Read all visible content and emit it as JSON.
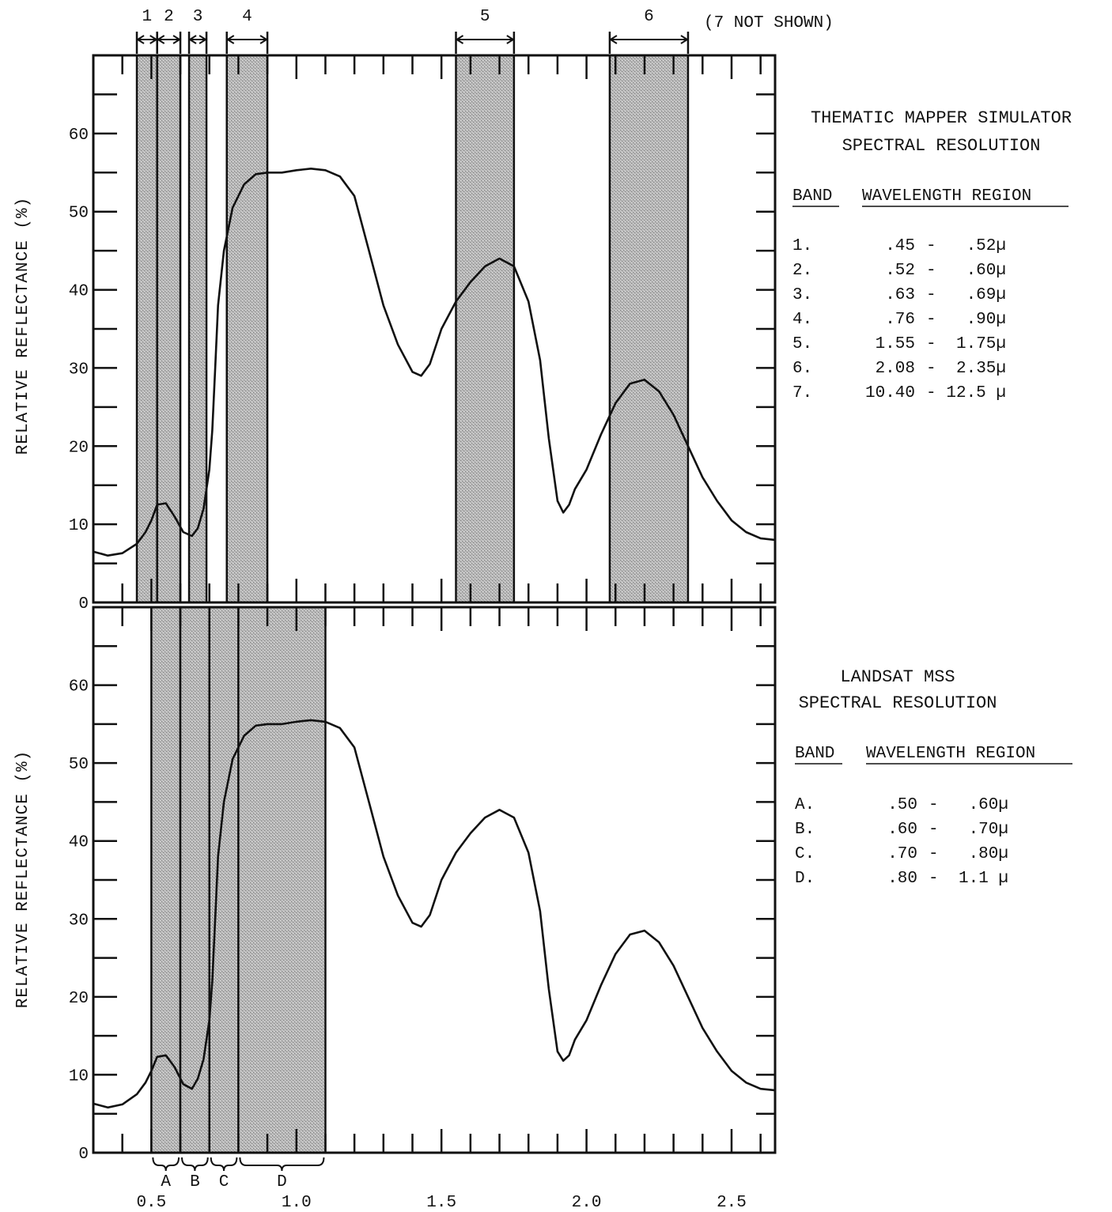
{
  "chart_data": [
    {
      "type": "line",
      "title_lines": [
        "THEMATIC MAPPER SIMULATOR",
        "SPECTRAL RESOLUTION"
      ],
      "ylabel": "RELATIVE REFLECTANCE (%)",
      "xlabel": "",
      "xlim": [
        0.3,
        2.65
      ],
      "ylim": [
        0,
        70
      ],
      "yticks": [
        {
          "value": 0,
          "label": "0"
        },
        {
          "value": 10,
          "label": "10"
        },
        {
          "value": 20,
          "label": "20"
        },
        {
          "value": 30,
          "label": "30"
        },
        {
          "value": 40,
          "label": "40"
        },
        {
          "value": 50,
          "label": "50"
        },
        {
          "value": 60,
          "label": "60"
        }
      ],
      "top_note": "(7 NOT SHOWN)",
      "bands": [
        {
          "label": "1",
          "from": 0.45,
          "to": 0.52
        },
        {
          "label": "2",
          "from": 0.52,
          "to": 0.6
        },
        {
          "label": "3",
          "from": 0.63,
          "to": 0.69
        },
        {
          "label": "4",
          "from": 0.76,
          "to": 0.9
        },
        {
          "label": "5",
          "from": 1.55,
          "to": 1.75
        },
        {
          "label": "6",
          "from": 2.08,
          "to": 2.35
        }
      ],
      "legend": {
        "headers": [
          "BAND",
          "WAVELENGTH REGION"
        ],
        "rows": [
          {
            "band": "1.",
            "from": ".45",
            "to": ".52µ"
          },
          {
            "band": "2.",
            "from": ".52",
            "to": ".60µ"
          },
          {
            "band": "3.",
            "from": ".63",
            "to": ".69µ"
          },
          {
            "band": "4.",
            "from": ".76",
            "to": ".90µ"
          },
          {
            "band": "5.",
            "from": "1.55",
            "to": "1.75µ"
          },
          {
            "band": "6.",
            "from": "2.08",
            "to": "2.35µ"
          },
          {
            "band": "7.",
            "from": "10.40",
            "to": "12.5 µ"
          }
        ]
      },
      "series": [
        {
          "x": [
            0.3,
            0.35,
            0.4,
            0.45,
            0.48,
            0.5,
            0.52,
            0.55,
            0.58,
            0.61,
            0.64,
            0.66,
            0.68,
            0.7,
            0.71,
            0.72,
            0.73,
            0.75,
            0.78,
            0.82,
            0.86,
            0.9,
            0.95,
            1.0,
            1.05,
            1.1,
            1.15,
            1.2,
            1.25,
            1.3,
            1.35,
            1.4,
            1.43,
            1.46,
            1.5,
            1.55,
            1.6,
            1.65,
            1.7,
            1.75,
            1.8,
            1.84,
            1.87,
            1.9,
            1.92,
            1.94,
            1.96,
            2.0,
            2.05,
            2.1,
            2.15,
            2.2,
            2.25,
            2.3,
            2.35,
            2.4,
            2.45,
            2.5,
            2.55,
            2.6,
            2.65
          ],
          "y": [
            6.5,
            6.0,
            6.3,
            7.5,
            9.0,
            10.5,
            12.5,
            12.7,
            11.0,
            9.0,
            8.5,
            9.5,
            12.0,
            17.0,
            22.0,
            30.0,
            38.0,
            45.0,
            50.5,
            53.5,
            54.8,
            55.0,
            55.0,
            55.3,
            55.5,
            55.3,
            54.5,
            52.0,
            45.0,
            38.0,
            33.0,
            29.5,
            29.0,
            30.5,
            35.0,
            38.5,
            41.0,
            43.0,
            44.0,
            43.0,
            38.5,
            31.0,
            21.0,
            13.0,
            11.5,
            12.5,
            14.5,
            17.0,
            21.5,
            25.5,
            28.0,
            28.5,
            27.0,
            24.0,
            20.0,
            16.0,
            13.0,
            10.5,
            9.0,
            8.2,
            8.0
          ]
        }
      ]
    },
    {
      "type": "line",
      "title_lines": [
        "LANDSAT MSS",
        "SPECTRAL RESOLUTION"
      ],
      "ylabel": "RELATIVE REFLECTANCE (%)",
      "xlabel": "",
      "xlim": [
        0.3,
        2.65
      ],
      "ylim": [
        0,
        70
      ],
      "yticks": [
        {
          "value": 0,
          "label": "0"
        },
        {
          "value": 10,
          "label": "10"
        },
        {
          "value": 20,
          "label": "20"
        },
        {
          "value": 30,
          "label": "30"
        },
        {
          "value": 40,
          "label": "40"
        },
        {
          "value": 50,
          "label": "50"
        },
        {
          "value": 60,
          "label": "60"
        }
      ],
      "xticks": [
        {
          "value": 0.5,
          "label": "0.5"
        },
        {
          "value": 1.0,
          "label": "1.0"
        },
        {
          "value": 1.5,
          "label": "1.5"
        },
        {
          "value": 2.0,
          "label": "2.0"
        },
        {
          "value": 2.5,
          "label": "2.5"
        }
      ],
      "bands": [
        {
          "label": "A",
          "from": 0.5,
          "to": 0.6
        },
        {
          "label": "B",
          "from": 0.6,
          "to": 0.7
        },
        {
          "label": "C",
          "from": 0.7,
          "to": 0.8
        },
        {
          "label": "D",
          "from": 0.8,
          "to": 1.1
        }
      ],
      "legend": {
        "headers": [
          "BAND",
          "WAVELENGTH REGION"
        ],
        "rows": [
          {
            "band": "A.",
            "from": ".50",
            "to": ".60µ"
          },
          {
            "band": "B.",
            "from": ".60",
            "to": ".70µ"
          },
          {
            "band": "C.",
            "from": ".70",
            "to": ".80µ"
          },
          {
            "band": "D.",
            "from": ".80",
            "to": "1.1 µ"
          }
        ]
      },
      "series": [
        {
          "x": [
            0.3,
            0.35,
            0.4,
            0.45,
            0.48,
            0.5,
            0.52,
            0.55,
            0.58,
            0.61,
            0.64,
            0.66,
            0.68,
            0.7,
            0.71,
            0.72,
            0.73,
            0.75,
            0.78,
            0.82,
            0.86,
            0.9,
            0.95,
            1.0,
            1.05,
            1.1,
            1.15,
            1.2,
            1.25,
            1.3,
            1.35,
            1.4,
            1.43,
            1.46,
            1.5,
            1.55,
            1.6,
            1.65,
            1.7,
            1.75,
            1.8,
            1.84,
            1.87,
            1.9,
            1.92,
            1.94,
            1.96,
            2.0,
            2.05,
            2.1,
            2.15,
            2.2,
            2.25,
            2.3,
            2.35,
            2.4,
            2.45,
            2.5,
            2.55,
            2.6,
            2.65
          ],
          "y": [
            6.3,
            5.8,
            6.2,
            7.5,
            9.0,
            10.5,
            12.3,
            12.5,
            11.0,
            8.8,
            8.2,
            9.5,
            12.0,
            17.0,
            22.0,
            30.0,
            38.0,
            45.0,
            50.5,
            53.5,
            54.8,
            55.0,
            55.0,
            55.3,
            55.5,
            55.3,
            54.5,
            52.0,
            45.0,
            38.0,
            33.0,
            29.5,
            29.0,
            30.5,
            35.0,
            38.5,
            41.0,
            43.0,
            44.0,
            43.0,
            38.5,
            31.0,
            21.0,
            13.0,
            11.8,
            12.5,
            14.5,
            17.0,
            21.5,
            25.5,
            28.0,
            28.5,
            27.0,
            24.0,
            20.0,
            16.0,
            13.0,
            10.5,
            9.0,
            8.2,
            8.0
          ]
        }
      ]
    }
  ]
}
